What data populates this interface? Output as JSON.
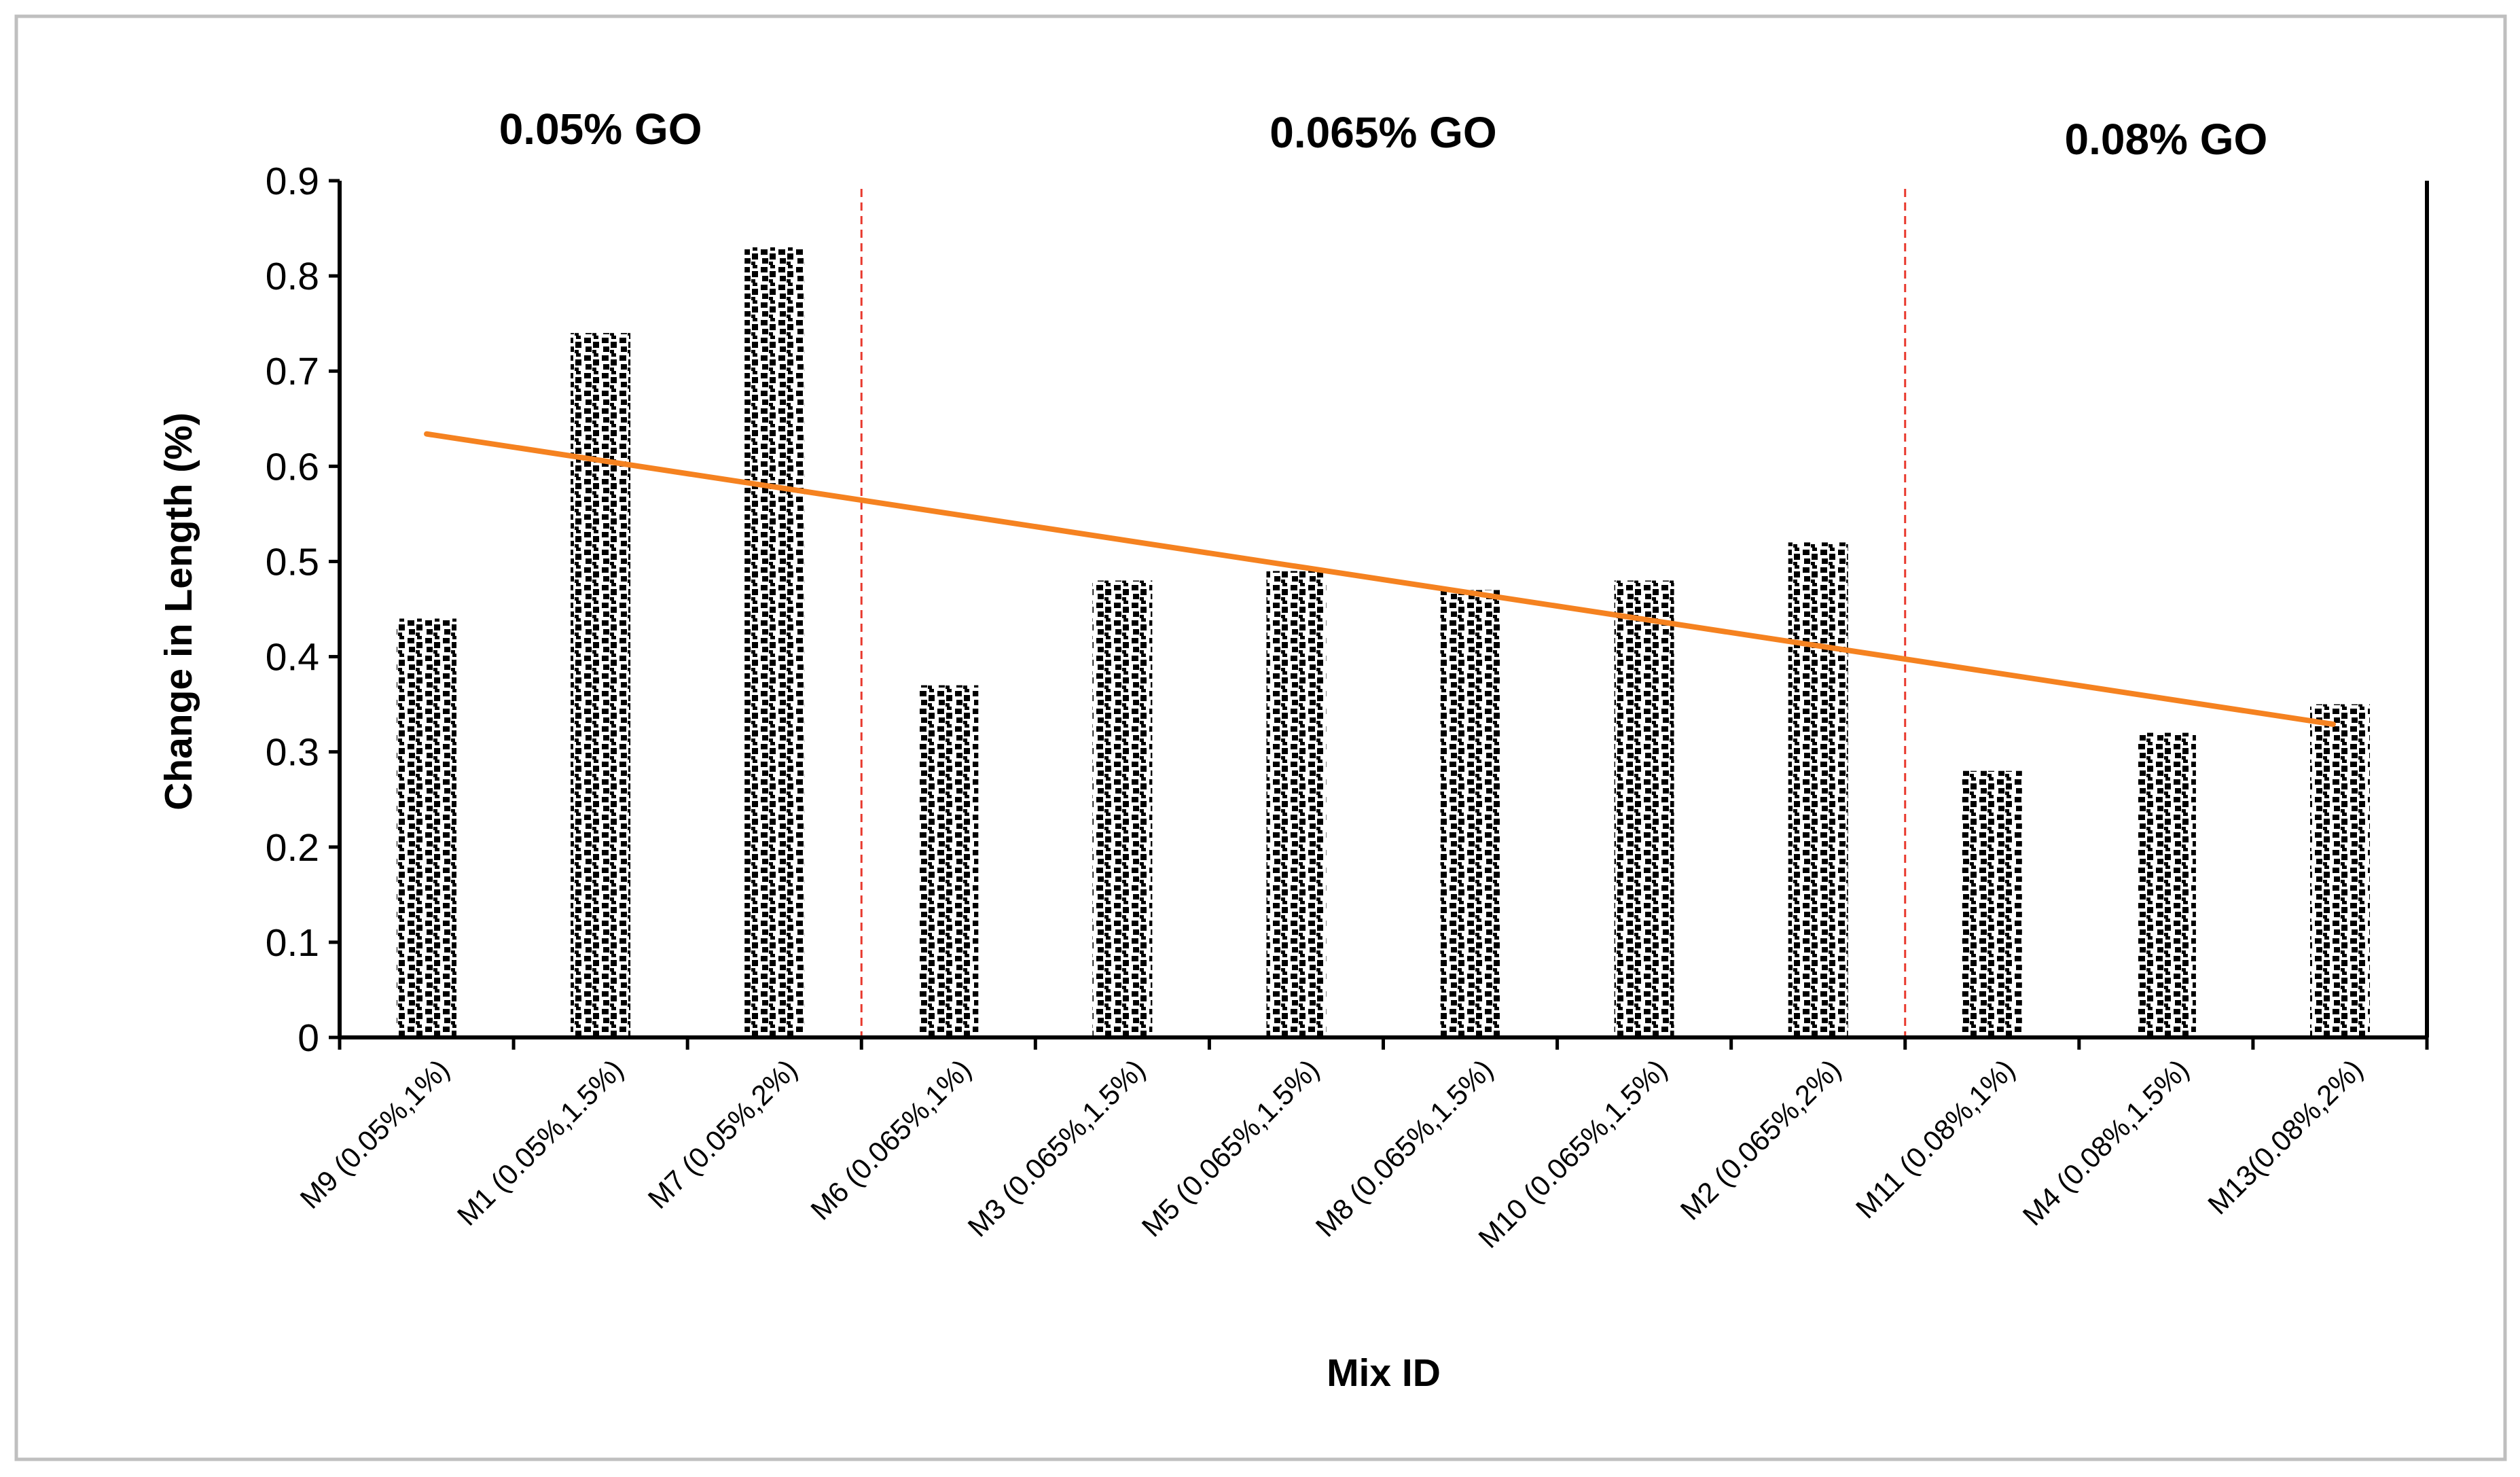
{
  "chart_data": {
    "type": "bar",
    "title": "",
    "xlabel": "Mix ID",
    "ylabel": "Change in Length (%)",
    "ylim": [
      0,
      0.9
    ],
    "yticks": [
      "0",
      "0.1",
      "0.2",
      "0.3",
      "0.4",
      "0.5",
      "0.6",
      "0.7",
      "0.8",
      "0.9"
    ],
    "grid": false,
    "legend": "none",
    "categories": [
      "M9 (0.05%,1%)",
      "M1 (0.05%,1.5%)",
      "M7 (0.05%,2%)",
      "M6 (0.065%,1%)",
      "M3 (0.065%,1.5%)",
      "M5 (0.065%,1.5%)",
      "M8 (0.065%,1.5%)",
      "M10 (0.065%,1.5%)",
      "M2 (0.065%,2%)",
      "M11 (0.08%,1%)",
      "M4 (0.08%,1.5%)",
      "M13(0.08%,2%)"
    ],
    "series": [
      {
        "name": "Change in Length",
        "values": [
          0.44,
          0.74,
          0.83,
          0.37,
          0.48,
          0.49,
          0.47,
          0.48,
          0.52,
          0.28,
          0.32,
          0.35
        ],
        "pattern": "dotted-black"
      }
    ],
    "trendline": {
      "type": "linear",
      "start_value": 0.634,
      "end_value": 0.329,
      "color": "#f58220"
    },
    "group_labels": [
      {
        "text": "0.05% GO",
        "start_index": 0,
        "end_index": 2
      },
      {
        "text": "0.065% GO",
        "start_index": 3,
        "end_index": 8
      },
      {
        "text": "0.08% GO",
        "start_index": 9,
        "end_index": 11
      }
    ],
    "dividers": [
      {
        "between": [
          2,
          3
        ],
        "color": "#e8392d",
        "style": "dashed"
      },
      {
        "between": [
          8,
          9
        ],
        "color": "#e8392d",
        "style": "dashed"
      }
    ]
  }
}
